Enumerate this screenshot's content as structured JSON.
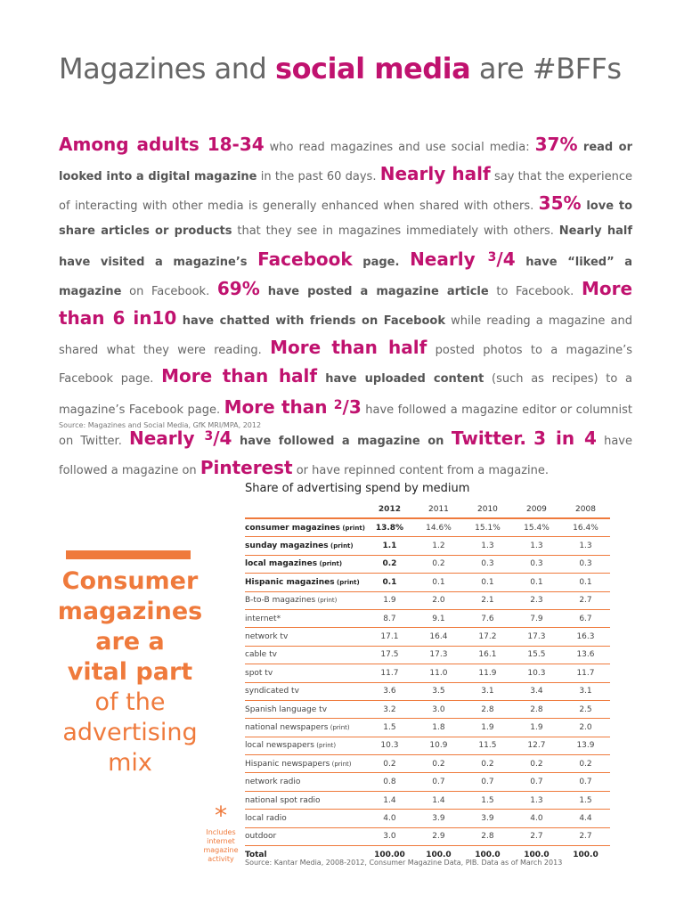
{
  "title": {
    "part1": "Magazines and ",
    "highlight": "social media",
    "part2": " are #BFFs"
  },
  "paragraph": {
    "s1": "Among adults 18-34",
    "s2": " who read magazines and use social media: ",
    "s3": "37%",
    "s4": " read or looked into a digital magazine",
    "s5": " in the past 60 days. ",
    "s6": "Nearly half",
    "s7": " say that the experience of interacting with other media is generally enhanced when shared with others. ",
    "s8": "35%",
    "s9": " love to share articles or products",
    "s10": " that they see in magazines immediately with others. ",
    "s11": "Nearly half have visited a magazine’s ",
    "s12": "Facebook",
    "s13": " page. ",
    "s14": "Nearly ",
    "s14sup": "3",
    "s14b": "/4",
    "s15": " have “liked” a magazine",
    "s16": " on Facebook. ",
    "s17": "69%",
    "s18": " have posted a magazine article",
    "s19": " to Facebook. ",
    "s20": "More than 6 in10",
    "s21": " have chatted with friends on Facebook",
    "s22": " while reading a magazine and shared what they were reading. ",
    "s23": "More than half",
    "s24": " posted photos to a magazine’s Facebook page. ",
    "s25": "More than half",
    "s26": " have uploaded content",
    "s27": " (such as recipes) to a magazine’s Facebook page. ",
    "s28": "More than ",
    "s28sup": "2",
    "s28b": "/3",
    "s29": " have followed a magazine editor or columnist on Twitter. ",
    "s30": "Nearly ",
    "s30sup": "3",
    "s30b": "/4",
    "s31": " have followed a magazine on ",
    "s32": "Twitter.",
    "s33": " ",
    "s34": "3 in 4",
    "s35": " have followed a magazine on ",
    "s36": "Pinterest",
    "s37": " or have repinned content from a magazine."
  },
  "source1": "Source: Magazines and Social Media, GfK MRI/MPA, 2012",
  "sidebar": {
    "line1": "Consumer",
    "line2": "magazines",
    "line3": "are a",
    "line4": "vital part",
    "line5": "of the",
    "line6": "advertising",
    "line7": "mix"
  },
  "footnote": {
    "asterisk": "*",
    "note1": "Includes",
    "note2": "internet",
    "note3": "magazine",
    "note4": "activity"
  },
  "table": {
    "title": "Share of advertising spend by medium",
    "years": [
      "2012",
      "2011",
      "2010",
      "2009",
      "2008"
    ],
    "rows": [
      {
        "label": "consumer magazines",
        "tag": " (print)",
        "values": [
          "13.8%",
          "14.6%",
          "15.1%",
          "15.4%",
          "16.4%"
        ]
      },
      {
        "label": "sunday magazines",
        "tag": " (print)",
        "values": [
          "1.1",
          "1.2",
          "1.3",
          "1.3",
          "1.3"
        ]
      },
      {
        "label": "local magazines",
        "tag": " (print)",
        "values": [
          "0.2",
          "0.2",
          "0.3",
          "0.3",
          "0.3"
        ]
      },
      {
        "label": "Hispanic magazines",
        "tag": " (print)",
        "values": [
          "0.1",
          "0.1",
          "0.1",
          "0.1",
          "0.1"
        ]
      },
      {
        "label": "B-to-B magazines",
        "tag": " (print)",
        "values": [
          "1.9",
          "2.0",
          "2.1",
          "2.3",
          "2.7"
        ]
      },
      {
        "label": "internet*",
        "tag": "",
        "values": [
          "8.7",
          "9.1",
          "7.6",
          "7.9",
          "6.7"
        ]
      },
      {
        "label": "network tv",
        "tag": "",
        "values": [
          "17.1",
          "16.4",
          "17.2",
          "17.3",
          "16.3"
        ]
      },
      {
        "label": "cable tv",
        "tag": "",
        "values": [
          "17.5",
          "17.3",
          "16.1",
          "15.5",
          "13.6"
        ]
      },
      {
        "label": "spot tv",
        "tag": "",
        "values": [
          "11.7",
          "11.0",
          "11.9",
          "10.3",
          "11.7"
        ]
      },
      {
        "label": "syndicated tv",
        "tag": "",
        "values": [
          "3.6",
          "3.5",
          "3.1",
          "3.4",
          "3.1"
        ]
      },
      {
        "label": "Spanish language tv",
        "tag": "",
        "values": [
          "3.2",
          "3.0",
          "2.8",
          "2.8",
          "2.5"
        ]
      },
      {
        "label": "national newspapers",
        "tag": " (print)",
        "values": [
          "1.5",
          "1.8",
          "1.9",
          "1.9",
          "2.0"
        ]
      },
      {
        "label": "local newspapers",
        "tag": " (print)",
        "values": [
          "10.3",
          "10.9",
          "11.5",
          "12.7",
          "13.9"
        ]
      },
      {
        "label": "Hispanic newspapers",
        "tag": " (print)",
        "values": [
          "0.2",
          "0.2",
          "0.2",
          "0.2",
          "0.2"
        ]
      },
      {
        "label": "network radio",
        "tag": "",
        "values": [
          "0.8",
          "0.7",
          "0.7",
          "0.7",
          "0.7"
        ]
      },
      {
        "label": "national spot radio",
        "tag": "",
        "values": [
          "1.4",
          "1.4",
          "1.5",
          "1.3",
          "1.5"
        ]
      },
      {
        "label": "local radio",
        "tag": "",
        "values": [
          "4.0",
          "3.9",
          "3.9",
          "4.0",
          "4.4"
        ]
      },
      {
        "label": "outdoor",
        "tag": "",
        "values": [
          "3.0",
          "2.9",
          "2.8",
          "2.7",
          "2.7"
        ]
      }
    ],
    "total": {
      "label": "Total",
      "values": [
        "100.00",
        "100.0",
        "100.0",
        "100.0",
        "100.0"
      ]
    }
  },
  "source2": "Source: Kantar Media, 2008-2012, Consumer Magazine Data, PIB. Data as of March 2013"
}
